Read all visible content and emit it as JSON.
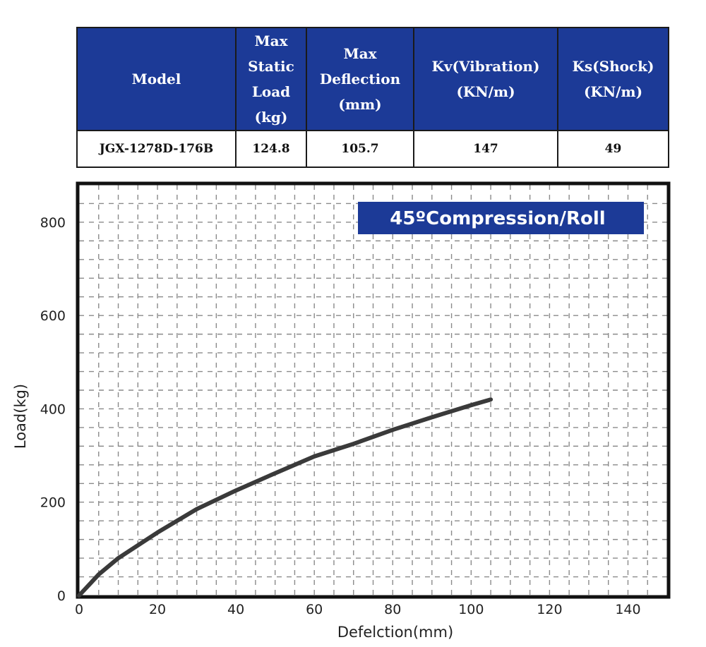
{
  "spec_table": {
    "headers": [
      "Model",
      "Max\nStatic\nLoad\n(kg)",
      "Max\nDeflection\n(mm)",
      "Kv(Vibration)\n(KN/m)",
      "Ks(Shock)\n(KN/m)"
    ],
    "row": [
      "JGX-1278D-176B",
      "124.8",
      "105.7",
      "147",
      "49"
    ]
  },
  "chart_data": {
    "type": "line",
    "title": "45ºCompression/Roll",
    "xlabel": "Defelction(mm)",
    "ylabel": "Load(kg)",
    "xlim": [
      0,
      150
    ],
    "ylim": [
      0,
      880
    ],
    "x_ticks": [
      0,
      20,
      40,
      60,
      80,
      100,
      120,
      140
    ],
    "y_ticks": [
      0,
      200,
      400,
      600,
      800
    ],
    "grid": true,
    "series": [
      {
        "x": [
          0,
          5,
          10,
          20,
          30,
          40,
          50,
          60,
          70,
          80,
          90,
          100,
          105
        ],
        "y": [
          0,
          45,
          80,
          135,
          185,
          225,
          262,
          298,
          325,
          355,
          382,
          408,
          420
        ]
      }
    ],
    "colors": {
      "line": "#3a3a3a",
      "badge": "#1c3a97",
      "grid": "#8a8a8a"
    }
  }
}
